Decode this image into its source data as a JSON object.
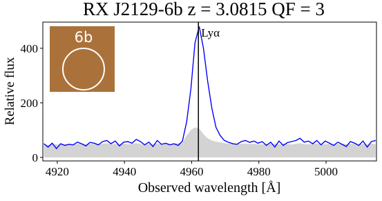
{
  "chart_data": {
    "type": "line",
    "title": "RX J2129-6b  z = 3.0815    QF = 3",
    "xlabel": "Observed wavelength  [Å]",
    "ylabel": "Relative flux",
    "x": [
      4916,
      4917.25,
      4918.5,
      4919.75,
      4921,
      4922.25,
      4923.5,
      4924.75,
      4926,
      4927.25,
      4928.5,
      4929.75,
      4931,
      4932.25,
      4933.5,
      4934.75,
      4936,
      4937.25,
      4938.5,
      4939.75,
      4941,
      4942.25,
      4943.5,
      4944.75,
      4946,
      4947.25,
      4948.5,
      4949.75,
      4951,
      4952.25,
      4953.5,
      4954.75,
      4956,
      4957.25,
      4958.5,
      4959.75,
      4961,
      4962.25,
      4963.5,
      4964.75,
      4966,
      4967.25,
      4968.5,
      4969.75,
      4971,
      4972.25,
      4973.5,
      4974.75,
      4976,
      4977.25,
      4978.5,
      4979.75,
      4981,
      4982.25,
      4983.5,
      4984.75,
      4986,
      4987.25,
      4988.5,
      4989.75,
      4991,
      4992.25,
      4993.5,
      4994.75,
      4996,
      4997.25,
      4998.5,
      4999.75,
      5001,
      5002.25,
      5003.5,
      5004.75,
      5006,
      5007.25,
      5008.5,
      5009.75,
      5011,
      5012.25,
      5013.5,
      5014.75
    ],
    "series": [
      {
        "color": "#d3d3d3",
        "fill": true,
        "values": [
          48,
          46,
          50,
          47,
          49,
          48,
          50,
          47,
          49,
          51,
          48,
          50,
          49,
          47,
          50,
          52,
          48,
          50,
          49,
          51,
          48,
          50,
          52,
          49,
          47,
          50,
          48,
          51,
          49,
          50,
          48,
          50,
          52,
          55,
          80,
          100,
          110,
          105,
          85,
          70,
          62,
          58,
          55,
          52,
          50,
          49,
          48,
          50,
          51,
          49,
          50,
          48,
          47,
          50,
          49,
          51,
          48,
          50,
          49,
          47,
          50,
          52,
          49,
          48,
          50,
          51,
          49,
          48,
          50,
          47,
          49,
          51,
          48,
          50,
          49,
          47,
          50,
          48,
          51,
          49
        ]
      },
      {
        "color": "#0000ff",
        "values": [
          50,
          38,
          52,
          32,
          50,
          44,
          48,
          46,
          56,
          50,
          42,
          55,
          52,
          46,
          58,
          62,
          50,
          60,
          42,
          56,
          58,
          52,
          66,
          58,
          46,
          56,
          40,
          62,
          48,
          52,
          46,
          50,
          44,
          60,
          130,
          250,
          420,
          480,
          400,
          280,
          180,
          110,
          80,
          62,
          55,
          50,
          48,
          58,
          62,
          55,
          60,
          52,
          58,
          44,
          56,
          38,
          60,
          44,
          54,
          58,
          62,
          70,
          56,
          60,
          50,
          62,
          46,
          60,
          52,
          44,
          56,
          48,
          40,
          58,
          52,
          44,
          60,
          38,
          58,
          62
        ]
      }
    ],
    "xlim": [
      4915.7,
      5015
    ],
    "ylim": [
      -13,
      496
    ],
    "xticks": [
      4920,
      4940,
      4960,
      4980,
      5000
    ],
    "yticks": [
      0,
      200,
      400
    ],
    "vline": {
      "x": 4962,
      "label": "Lyα",
      "color": "#000000"
    },
    "inset": {
      "label": "6b"
    }
  }
}
